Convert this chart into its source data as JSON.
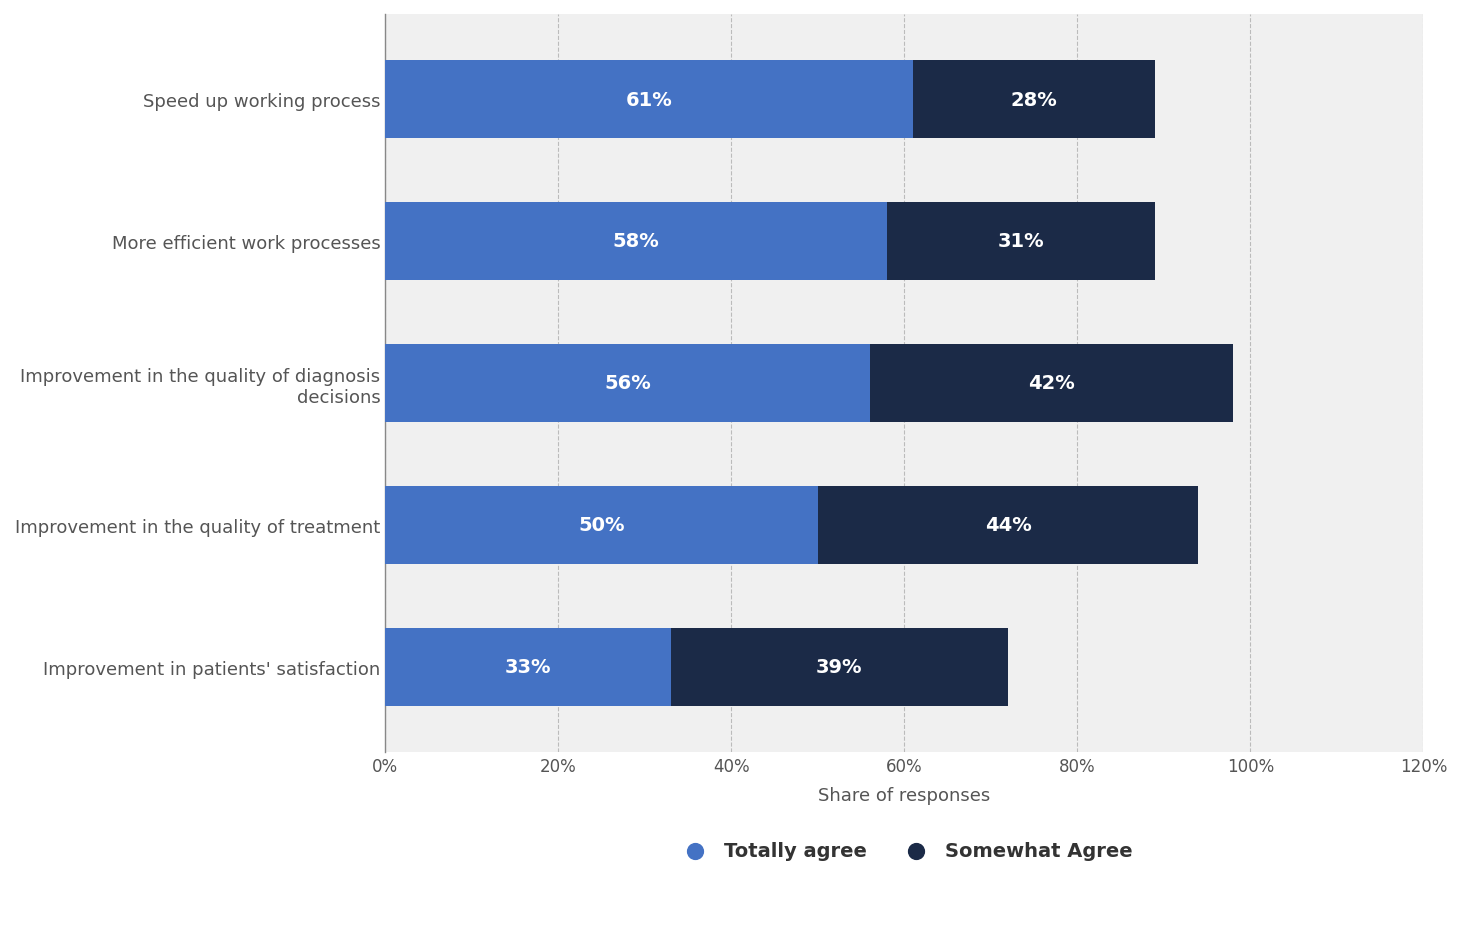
{
  "categories": [
    "Speed up working process",
    "More efficient work processes",
    "Improvement in the quality of diagnosis\ndecisions",
    "Improvement in the quality of treatment",
    "Improvement in patients' satisfaction"
  ],
  "totally_agree": [
    61,
    58,
    56,
    50,
    33
  ],
  "somewhat_agree": [
    28,
    31,
    42,
    44,
    39
  ],
  "totally_agree_color": "#4472C4",
  "somewhat_agree_color": "#1B2A47",
  "bar_label_color": "#ffffff",
  "background_color": "#ffffff",
  "plot_bg_color": "#f0f0f0",
  "xlabel": "Share of responses",
  "xlim": [
    0,
    120
  ],
  "xticks": [
    0,
    20,
    40,
    60,
    80,
    100,
    120
  ],
  "xtick_labels": [
    "0%",
    "20%",
    "40%",
    "60%",
    "80%",
    "100%",
    "120%"
  ],
  "legend_labels": [
    "Totally agree",
    "Somewhat Agree"
  ],
  "bar_height": 0.55,
  "bar_label_fontsize": 14,
  "tick_fontsize": 12,
  "label_fontsize": 13,
  "legend_fontsize": 14
}
